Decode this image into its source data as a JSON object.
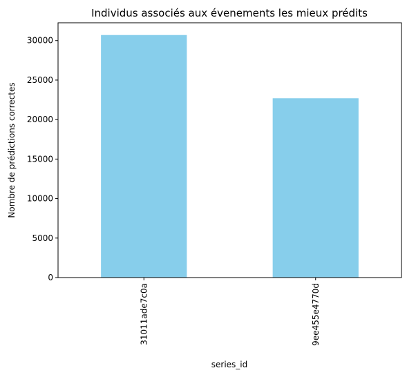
{
  "chart_data": {
    "type": "bar",
    "title": "Individus associés aux évenements les mieux prédits",
    "xlabel": "series_id",
    "ylabel": "Nombre de prédictions correctes",
    "categories": [
      "31011ade7c0a",
      "9ee455e4770d"
    ],
    "values": [
      30700,
      22700
    ],
    "ylim": [
      0,
      32250
    ],
    "yticks": [
      0,
      5000,
      10000,
      15000,
      20000,
      25000,
      30000
    ],
    "bar_color": "#87ceeb",
    "grid": false,
    "legend": "none"
  }
}
